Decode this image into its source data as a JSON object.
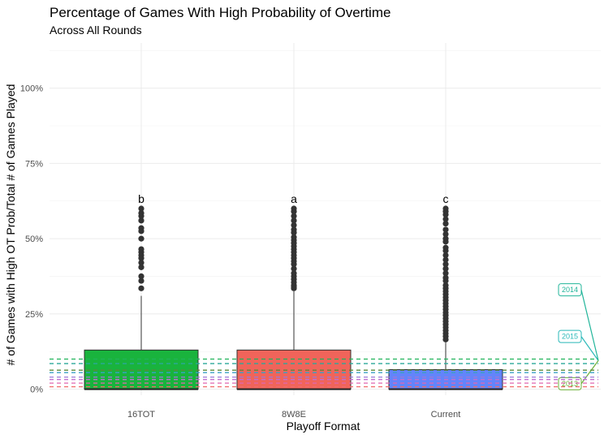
{
  "chart_data": {
    "type": "box",
    "title": "Percentage of Games With High Probability of Overtime",
    "subtitle": "Across All Rounds",
    "xlabel": "Playoff Format",
    "ylabel": "# of Games with High OT Prob/Total # of Games Played",
    "ylim": [
      -0.02,
      1.15
    ],
    "y_ticks": [
      {
        "value": 0,
        "label": "0%"
      },
      {
        "value": 0.25,
        "label": "25%"
      },
      {
        "value": 0.5,
        "label": "50%"
      },
      {
        "value": 0.75,
        "label": "75%"
      },
      {
        "value": 1.0,
        "label": "100%"
      }
    ],
    "grid": true,
    "categories": [
      "16TOT",
      "8W8E",
      "Current"
    ],
    "boxes": [
      {
        "category": "16TOT",
        "q1": 0,
        "median": 0,
        "q3": 0.13,
        "whisker_low": 0,
        "whisker_high": 0.31,
        "color": "#19b33d",
        "letter": "b",
        "outliers": [
          0.335,
          0.36,
          0.375,
          0.405,
          0.42,
          0.435,
          0.445,
          0.455,
          0.465,
          0.5,
          0.525,
          0.535,
          0.56,
          0.575,
          0.585,
          0.6
        ]
      },
      {
        "category": "8W8E",
        "q1": 0,
        "median": 0,
        "q3": 0.13,
        "whisker_low": 0,
        "whisker_high": 0.325,
        "color": "#f0645a",
        "letter": "a",
        "outliers": [
          0.335,
          0.34,
          0.345,
          0.355,
          0.365,
          0.375,
          0.385,
          0.4,
          0.415,
          0.425,
          0.435,
          0.445,
          0.455,
          0.465,
          0.475,
          0.485,
          0.495,
          0.505,
          0.52,
          0.53,
          0.545,
          0.56,
          0.575,
          0.59,
          0.6
        ]
      },
      {
        "category": "Current",
        "q1": 0,
        "median": 0,
        "q3": 0.065,
        "whisker_low": 0,
        "whisker_high": 0.155,
        "color": "#6384fa",
        "letter": "c",
        "outliers": [
          0.165,
          0.175,
          0.185,
          0.195,
          0.205,
          0.215,
          0.225,
          0.235,
          0.245,
          0.255,
          0.265,
          0.275,
          0.285,
          0.295,
          0.305,
          0.315,
          0.325,
          0.335,
          0.345,
          0.36,
          0.37,
          0.385,
          0.4,
          0.415,
          0.43,
          0.445,
          0.46,
          0.47,
          0.49,
          0.5,
          0.515,
          0.53,
          0.55,
          0.565,
          0.58,
          0.59,
          0.6
        ]
      }
    ],
    "reference_lines": [
      {
        "value": 0.1,
        "color": "#20b35a"
      },
      {
        "value": 0.085,
        "color": "#2aa89a"
      },
      {
        "value": 0.063,
        "color": "#5c8a3a"
      },
      {
        "value": 0.055,
        "color": "#3aa0c8"
      },
      {
        "value": 0.04,
        "color": "#9a7ad8"
      },
      {
        "value": 0.032,
        "color": "#c070d0"
      },
      {
        "value": 0.02,
        "color": "#e066b0"
      },
      {
        "value": 0.008,
        "color": "#f06a6a"
      }
    ],
    "year_labels": [
      {
        "label": "2014",
        "value": 0.33,
        "color": "#22b59a"
      },
      {
        "label": "2015",
        "value": 0.175,
        "color": "#28b8b8"
      },
      {
        "label": "2013",
        "value": 0.018,
        "color": "#6cb03a"
      }
    ],
    "year_label_target": 0.095
  }
}
